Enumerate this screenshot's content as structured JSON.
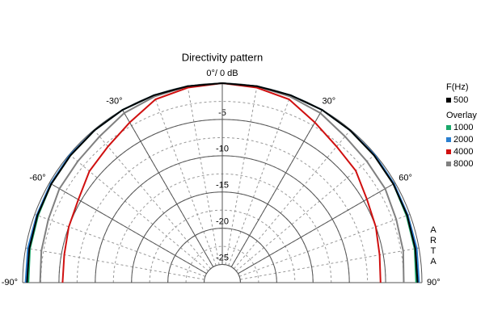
{
  "chart_data": {
    "type": "polar",
    "title": "Directivity pattern",
    "theta": [
      -90,
      -80,
      -70,
      -60,
      -50,
      -40,
      -30,
      -20,
      -10,
      0,
      10,
      20,
      30,
      40,
      50,
      60,
      70,
      80,
      90
    ],
    "thetaticks": [
      {
        "value": -90,
        "label": "-90°"
      },
      {
        "value": -60,
        "label": "-60°"
      },
      {
        "value": -30,
        "label": "-30°"
      },
      {
        "value": 0,
        "label": "0°/ 0 dB"
      },
      {
        "value": 30,
        "label": "30°"
      },
      {
        "value": 60,
        "label": "60°"
      },
      {
        "value": 90,
        "label": "90°"
      }
    ],
    "rlim": [
      -27.5,
      0
    ],
    "rticks": [
      -5,
      -10,
      -15,
      -20,
      -25
    ],
    "legend_title": "F(Hz)",
    "overlay_title": "Overlay",
    "side_label": "ARTA",
    "series": [
      {
        "name": "500",
        "color": "#000000",
        "values": [
          -0.6,
          -0.5,
          -0.4,
          -0.3,
          -0.2,
          -0.1,
          0,
          0,
          0,
          0,
          0,
          0,
          0,
          -0.1,
          -0.2,
          -0.3,
          -0.4,
          -0.5,
          -0.6
        ]
      },
      {
        "name": "1000",
        "color": "#1aa86a",
        "values": [
          -0.8,
          -0.6,
          -0.5,
          -0.3,
          -0.2,
          -0.1,
          0,
          0,
          0,
          0,
          0,
          0,
          0,
          -0.1,
          -0.2,
          -0.3,
          -0.5,
          -0.6,
          -0.8
        ]
      },
      {
        "name": "2000",
        "color": "#2a7fd0",
        "values": [
          -0.4,
          -0.3,
          -0.3,
          -0.2,
          -0.1,
          -0.1,
          0,
          0,
          0,
          0,
          0,
          0,
          0,
          -0.1,
          -0.1,
          -0.2,
          -0.3,
          -0.3,
          -0.4
        ]
      },
      {
        "name": "4000",
        "color": "#d01010",
        "values": [
          -5.5,
          -5.4,
          -5.0,
          -4.6,
          -3.6,
          -3.0,
          -2.0,
          -0.6,
          -0.2,
          0,
          -0.2,
          -0.6,
          -2.0,
          -3.0,
          -3.5,
          -4.5,
          -5.0,
          -5.5,
          -5.7
        ]
      },
      {
        "name": "8000",
        "color": "#808080",
        "values": [
          -2.4,
          -2.2,
          -2.0,
          -1.6,
          -1.5,
          -1.2,
          -0.5,
          -0.2,
          0,
          0,
          0,
          -0.2,
          -0.5,
          -1.2,
          -1.5,
          -1.6,
          -2.0,
          -2.2,
          -2.5
        ]
      }
    ]
  }
}
